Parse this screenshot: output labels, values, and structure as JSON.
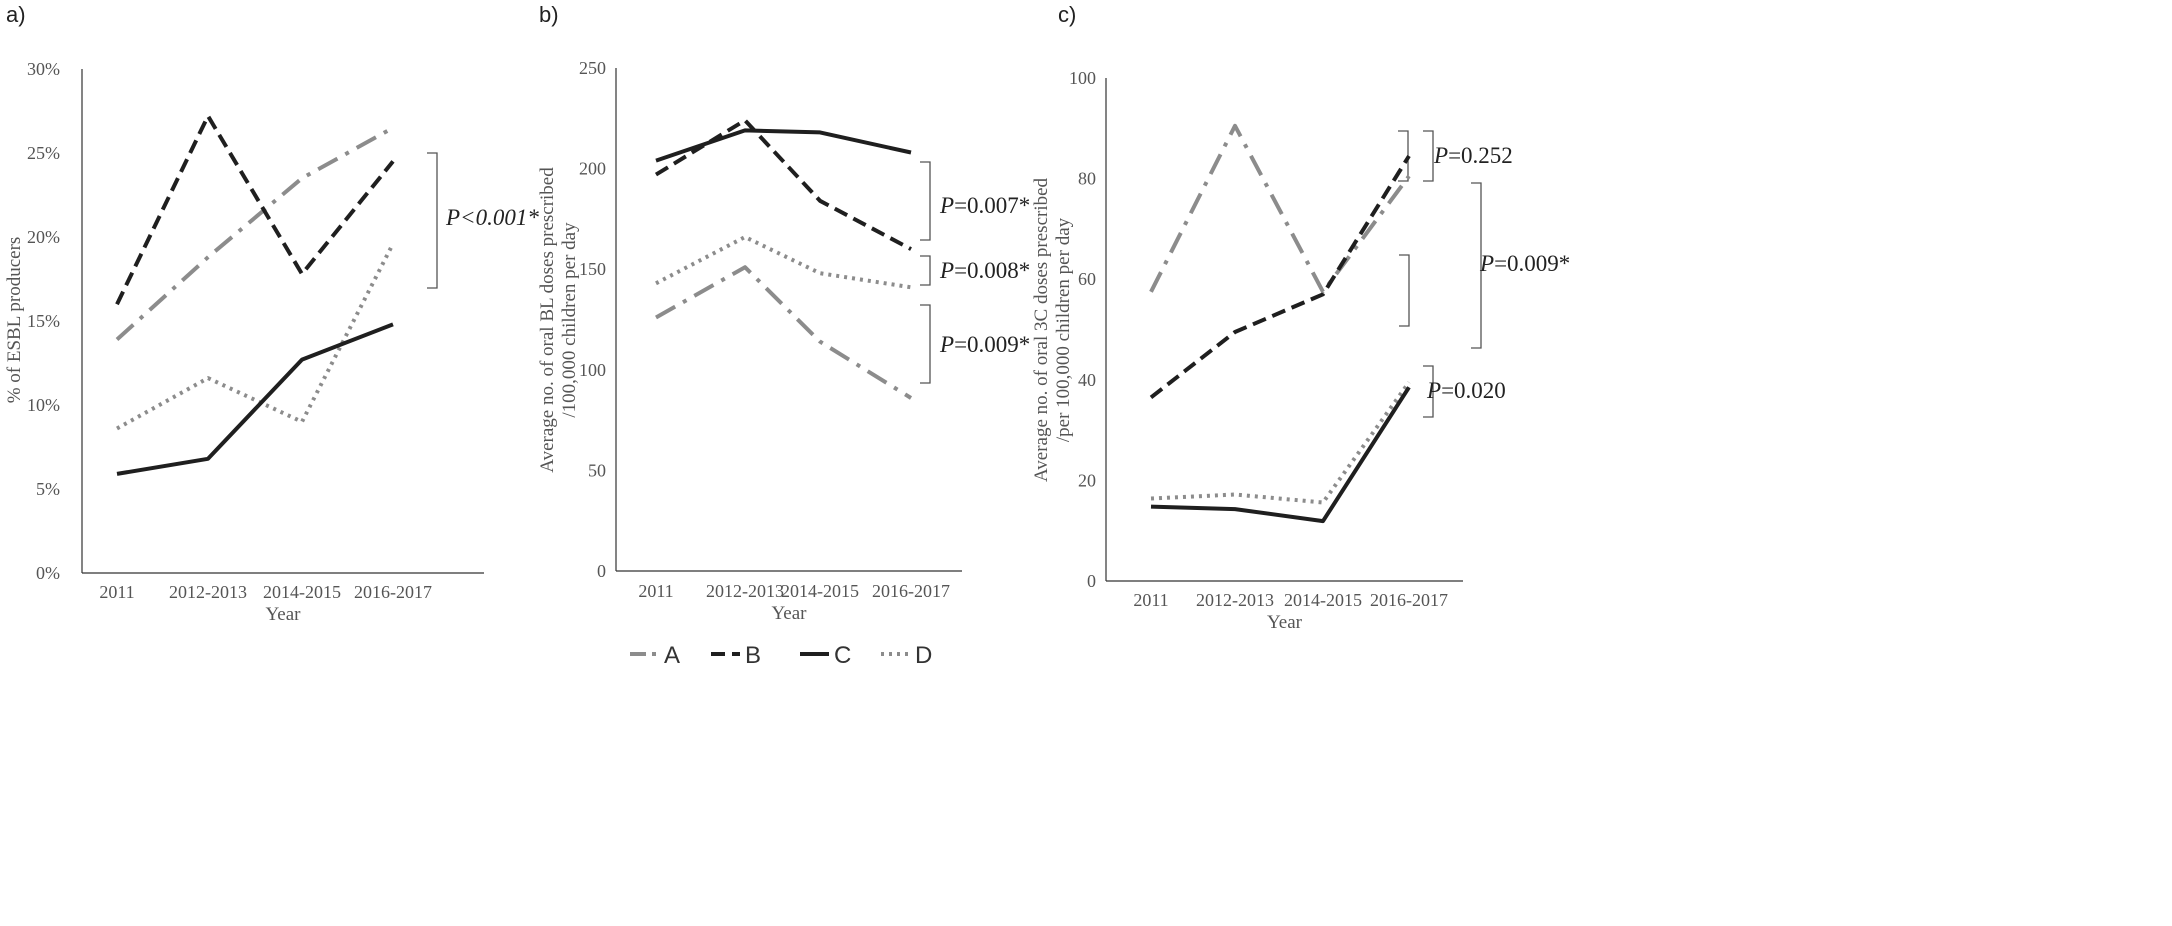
{
  "figure_legend": {
    "entries": [
      "A",
      "B",
      "C",
      "D"
    ]
  },
  "series_styles": {
    "A": {
      "color": "#8c8c8c",
      "dash": "dashdot"
    },
    "B": {
      "color": "#1f1f1f",
      "dash": "dash"
    },
    "C": {
      "color": "#1f1f1f",
      "dash": "solid"
    },
    "D": {
      "color": "#8c8c8c",
      "dash": "dot"
    }
  },
  "chart_data": [
    {
      "type": "line",
      "panel_label": "a)",
      "categories": [
        "2011",
        "2012-2013",
        "2014-2015",
        "2016-2017"
      ],
      "xlabel": "Year",
      "ylabel": "% of ESBL producers",
      "ylim": [
        0,
        30
      ],
      "yticks": [
        0,
        5,
        10,
        15,
        20,
        25,
        30
      ],
      "ytick_labels": [
        "0%",
        "5%",
        "10%",
        "15%",
        "20%",
        "25%",
        "30%"
      ],
      "series": [
        {
          "name": "A",
          "values": [
            13.9,
            18.8,
            23.5,
            26.5
          ]
        },
        {
          "name": "B",
          "values": [
            16.0,
            27.2,
            17.8,
            24.5
          ]
        },
        {
          "name": "C",
          "values": [
            5.9,
            6.8,
            12.7,
            14.8
          ]
        },
        {
          "name": "D",
          "values": [
            8.6,
            11.6,
            9.0,
            19.6
          ]
        }
      ],
      "annotations": [
        {
          "text": "P<0.001*",
          "italic_all": true
        }
      ]
    },
    {
      "type": "line",
      "panel_label": "b)",
      "categories": [
        "2011",
        "2012-2013",
        "2014-2015",
        "2016-2017"
      ],
      "xlabel": "Year",
      "ylabel": "Average no. of oral BL doses prescribed /100,000 children per day",
      "ylabel_lines": [
        "Average no. of oral BL doses prescribed",
        "/100,000 children per day"
      ],
      "ylim": [
        0,
        250
      ],
      "yticks": [
        0,
        50,
        100,
        150,
        200,
        250
      ],
      "ytick_labels": [
        "0",
        "50",
        "100",
        "150",
        "200",
        "250"
      ],
      "series": [
        {
          "name": "A",
          "values": [
            126,
            151,
            114,
            86
          ]
        },
        {
          "name": "B",
          "values": [
            197,
            224,
            184,
            160
          ]
        },
        {
          "name": "C",
          "values": [
            204,
            219,
            218,
            208
          ]
        },
        {
          "name": "D",
          "values": [
            143,
            166,
            148,
            141
          ]
        }
      ],
      "annotations": [
        {
          "text": "P=0.007*"
        },
        {
          "text": "P=0.008*"
        },
        {
          "text": "P=0.009*"
        }
      ]
    },
    {
      "type": "line",
      "panel_label": "c)",
      "categories": [
        "2011",
        "2012-2013",
        "2014-2015",
        "2016-2017"
      ],
      "xlabel": "Year",
      "ylabel": "Average no. of oral 3C doses prescribed /per 100,000 children per day",
      "ylabel_lines": [
        "Average no. of oral 3C doses prescribed",
        "/per 100,000 children per day"
      ],
      "ylim": [
        0,
        100
      ],
      "yticks": [
        0,
        20,
        40,
        60,
        80,
        100
      ],
      "ytick_labels": [
        "0",
        "20",
        "40",
        "60",
        "80",
        "100"
      ],
      "series": [
        {
          "name": "A",
          "values": [
            57.5,
            90.5,
            57.5,
            80.5
          ]
        },
        {
          "name": "B",
          "values": [
            36.5,
            49.5,
            57.0,
            84.5
          ]
        },
        {
          "name": "C",
          "values": [
            14.8,
            14.3,
            11.9,
            38.5
          ]
        },
        {
          "name": "D",
          "values": [
            16.4,
            17.2,
            15.6,
            39.5
          ]
        }
      ],
      "annotations": [
        {
          "text": "P=0.252"
        },
        {
          "text": "P=0.009*"
        },
        {
          "text": "P=0.020"
        }
      ]
    }
  ]
}
